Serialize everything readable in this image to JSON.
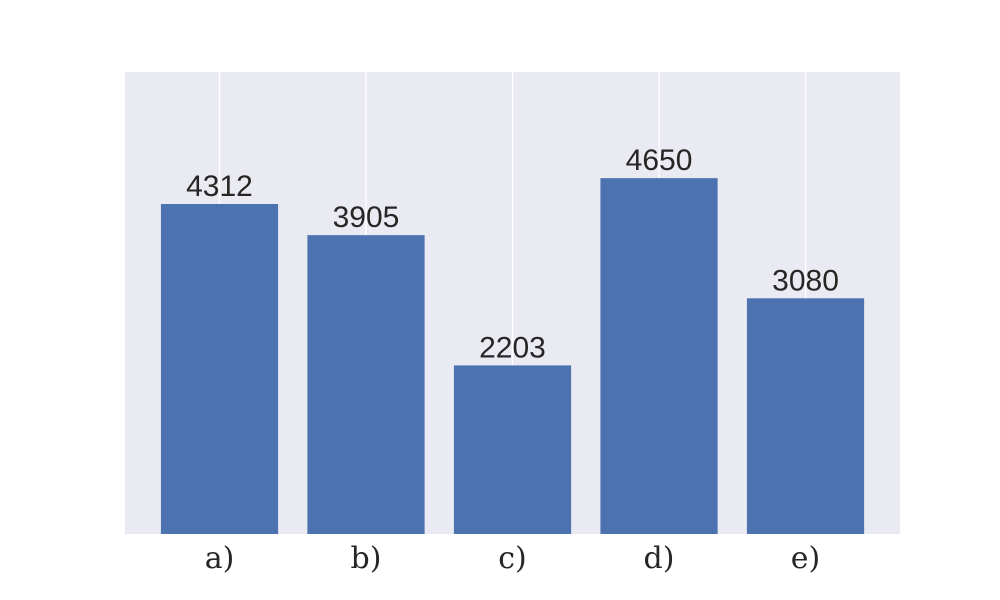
{
  "chart_data": {
    "type": "bar",
    "categories": [
      "a)",
      "b)",
      "c)",
      "d)",
      "e)"
    ],
    "values": [
      4312,
      3905,
      2203,
      4650,
      3080
    ],
    "title": "",
    "xlabel": "",
    "ylabel": "",
    "ylim": [
      0,
      6037
    ],
    "grid": "vertical",
    "colors": {
      "bar": "#4c72b0",
      "plot_background": "#eaeaf2",
      "grid": "#ffffff",
      "text": "#262626"
    }
  }
}
